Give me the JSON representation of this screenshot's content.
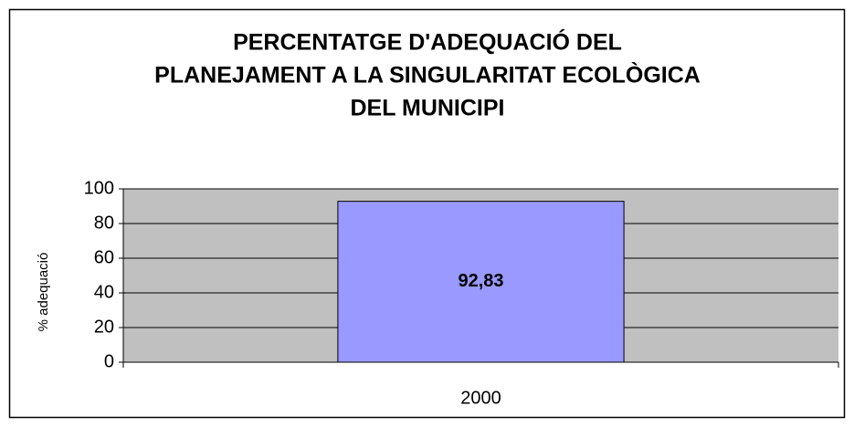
{
  "chart_data": {
    "type": "bar",
    "title": [
      "PERCENTATGE D'ADEQUACIÓ DEL",
      "PLANEJAMENT A LA SINGULARITAT ECOLÒGICA",
      "DEL MUNICIPI"
    ],
    "y_label": "% adequació",
    "categories": [
      "2000"
    ],
    "values": [
      92.83
    ],
    "value_labels": [
      "92,83"
    ],
    "color": "#9999ff",
    "plot_background": "#c0c0c0",
    "ylim": [
      0,
      100
    ],
    "yticks": [
      0,
      20,
      40,
      60,
      80,
      100
    ],
    "grid": true
  }
}
